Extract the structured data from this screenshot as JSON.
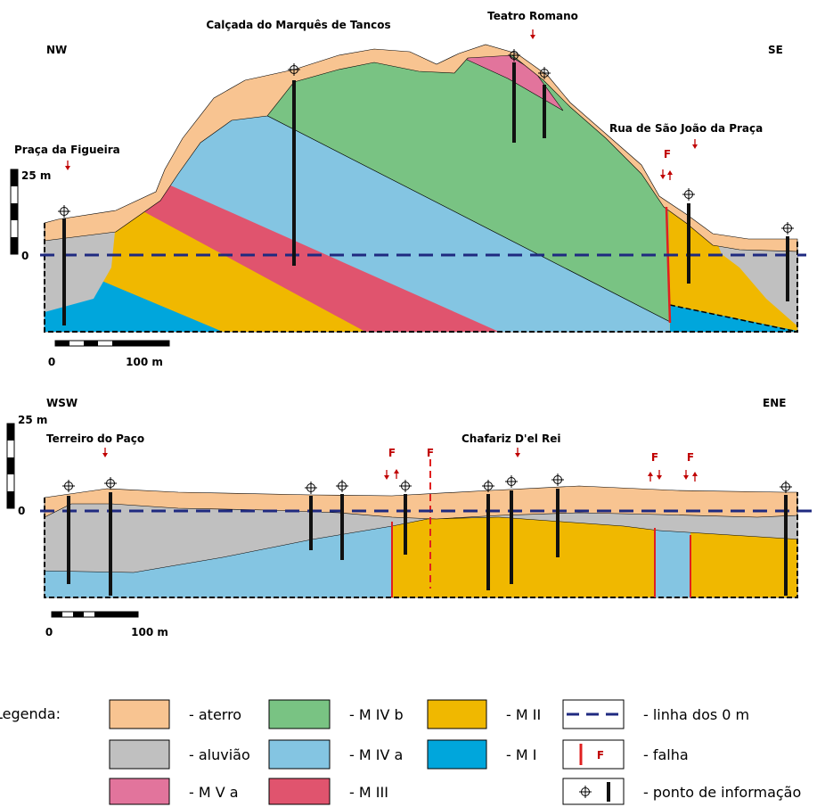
{
  "section_1": {
    "left_direction": "NW",
    "right_direction": "SE",
    "locations": [
      "Calçada do Marquês de Tancos",
      "Teatro Romano",
      "Praça da Figueira",
      "Rua de São João da Praça"
    ],
    "fault_label": "F",
    "vertical_scale": {
      "top": "25 m",
      "zero": "0"
    },
    "horizontal_scale": {
      "zero": "0",
      "length": "100 m"
    }
  },
  "section_2": {
    "left_direction": "WSW",
    "right_direction": "ENE",
    "locations": [
      "Terreiro do Paço",
      "Chafariz D'el Rei"
    ],
    "fault_labels": [
      "F",
      "F",
      "F",
      "F"
    ],
    "vertical_scale": {
      "top": "25 m",
      "zero": "0"
    },
    "horizontal_scale": {
      "zero": "0",
      "length": "100 m"
    }
  },
  "legend": {
    "title": "Legenda:",
    "fault_symbol": "F",
    "items": [
      "- aterro",
      "- aluvião",
      "- M V a",
      "- M IV b",
      "- M IV a",
      "- M III",
      "- M II",
      "- M I",
      "- linha dos 0 m",
      "- falha",
      "- ponto de informação"
    ]
  }
}
